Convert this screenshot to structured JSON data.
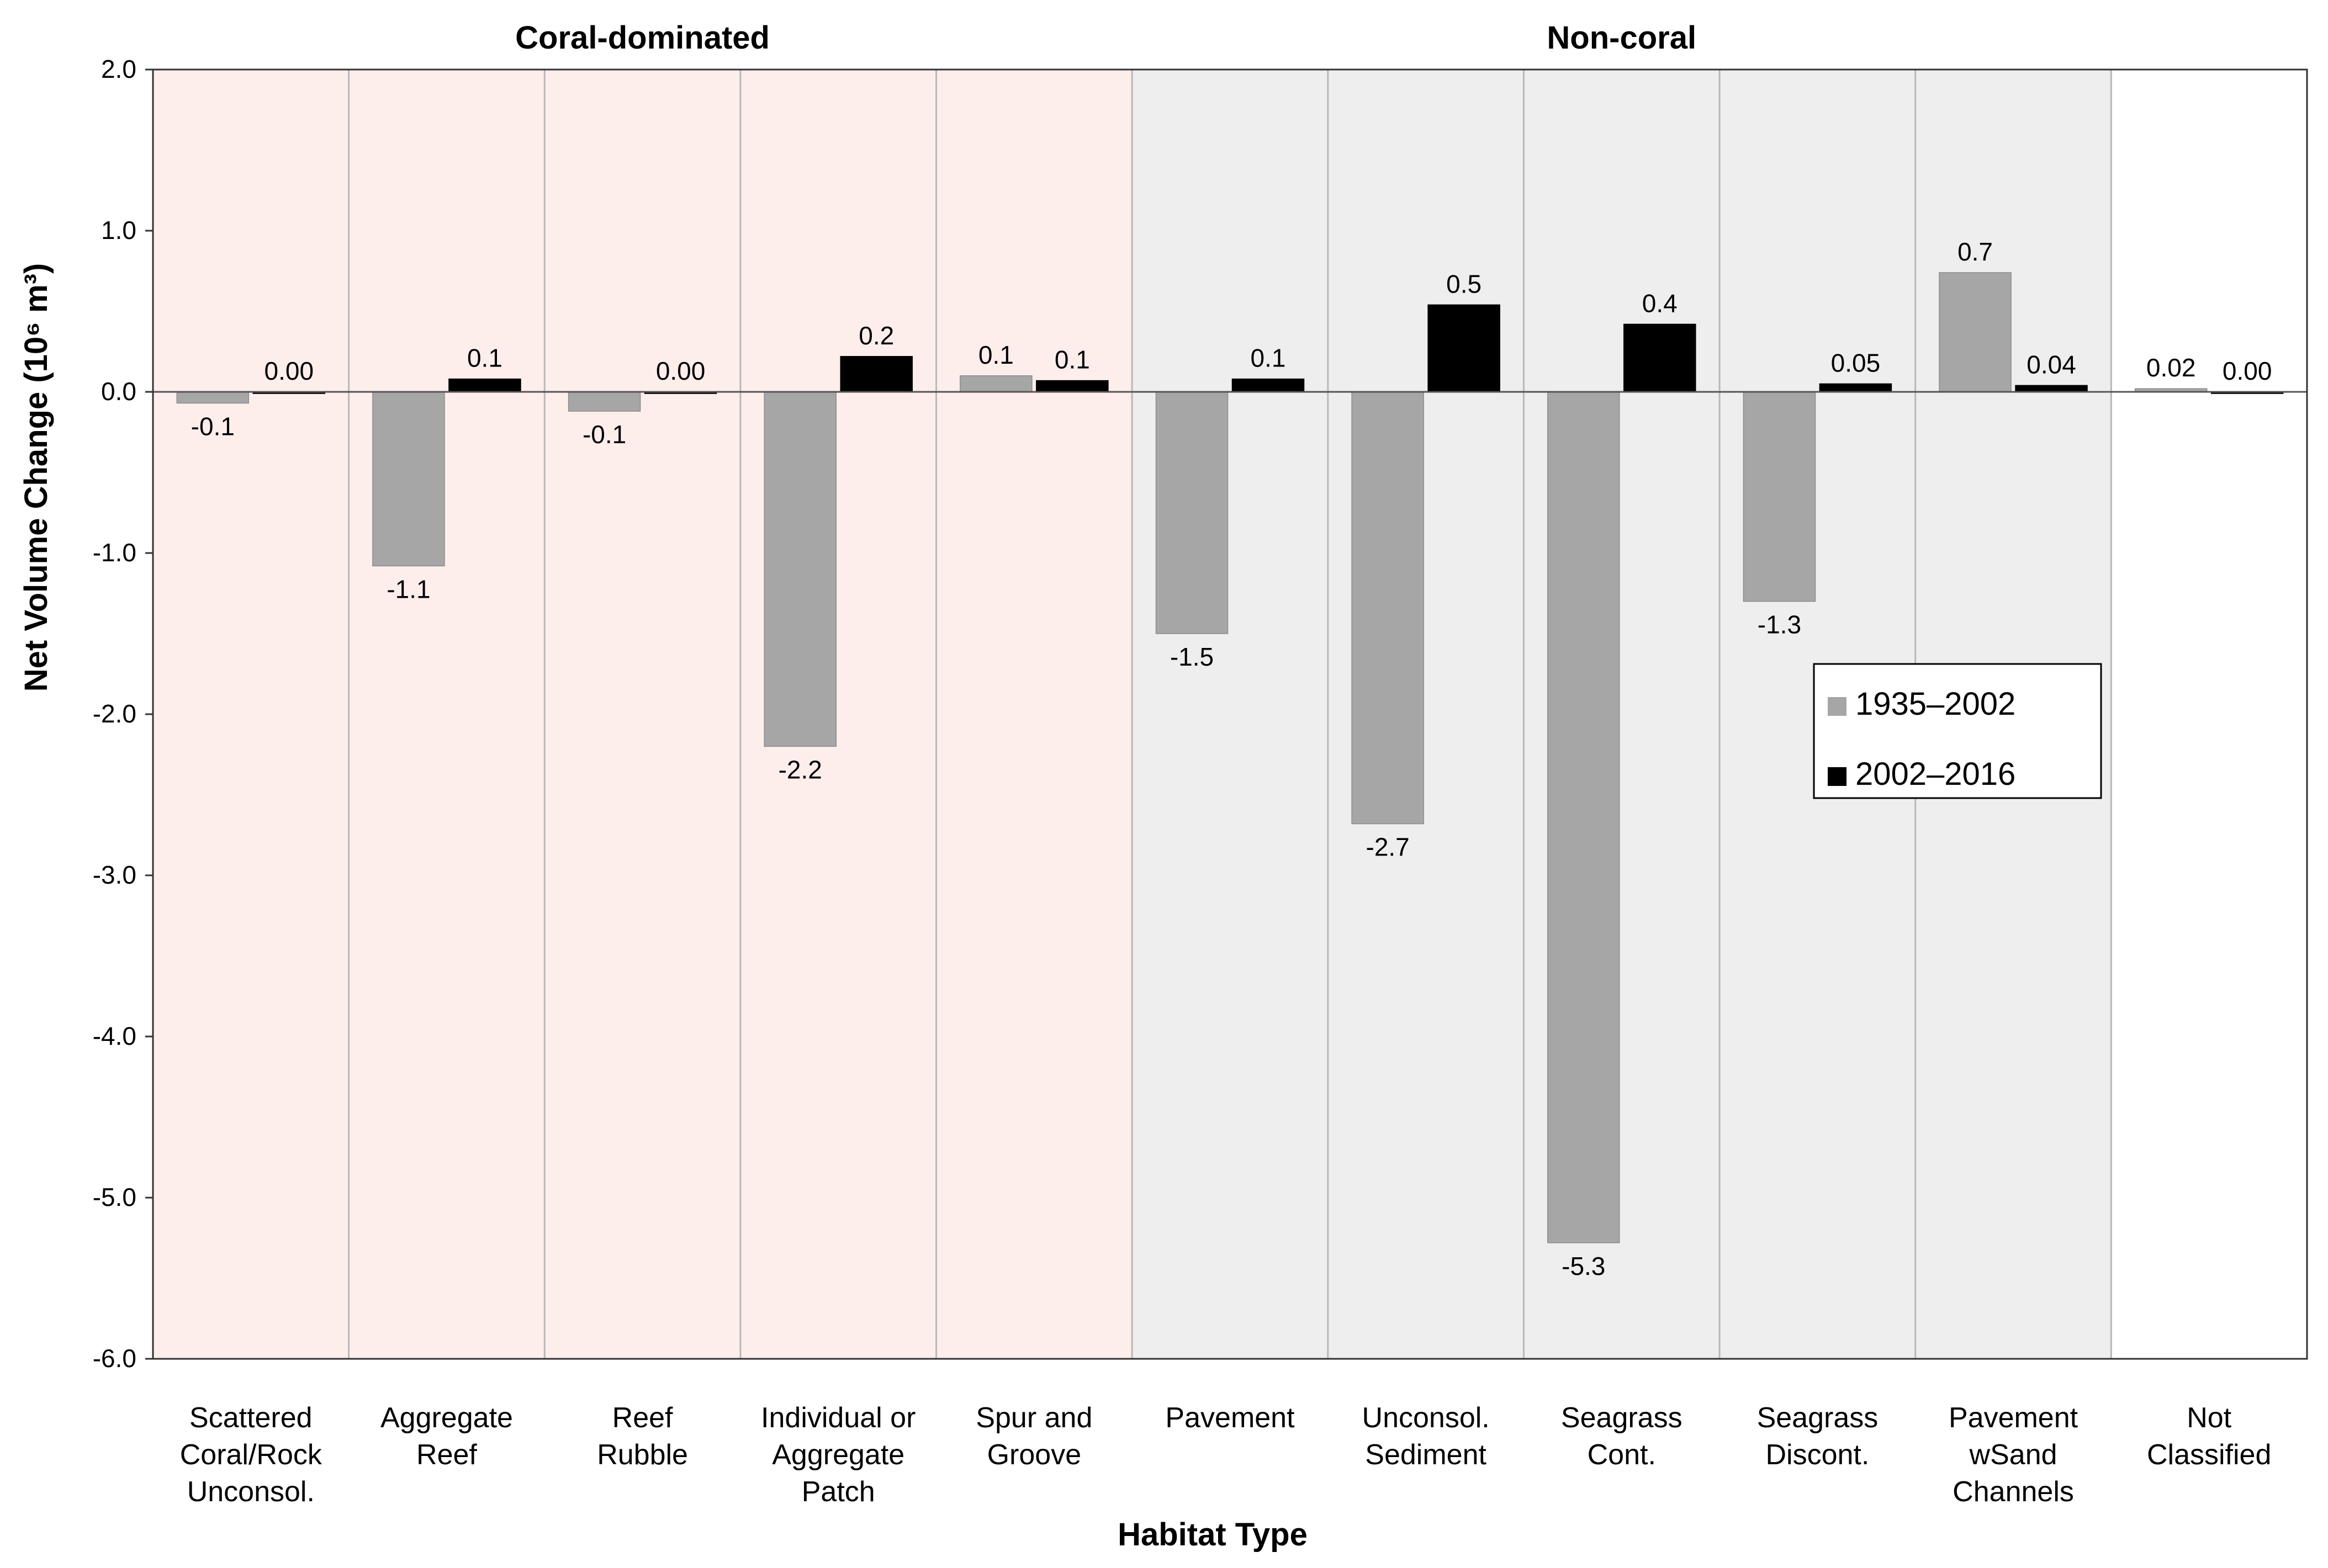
{
  "chart_data": {
    "type": "bar",
    "ylabel": "Net Volume Change (10⁶ m³)",
    "xlabel": "Habitat Type",
    "ylim": [
      -6.0,
      2.0
    ],
    "yticks": [
      "2.0",
      "1.0",
      "0.0",
      "-1.0",
      "-2.0",
      "-3.0",
      "-4.0",
      "-5.0",
      "-6.0"
    ],
    "ytick_values": [
      2,
      1,
      0,
      -1,
      -2,
      -3,
      -4,
      -5,
      -6
    ],
    "grid": "vertical category separators",
    "legend_position": "right, middle",
    "groups": [
      {
        "label": "Coral-dominated",
        "first": 0,
        "last": 4,
        "color": "#fdeeec"
      },
      {
        "label": "Non-coral",
        "first": 5,
        "last": 9,
        "color": "#eeeeee"
      }
    ],
    "categories": [
      [
        "Scattered",
        "Coral/Rock",
        "Unconsol."
      ],
      [
        "Aggregate",
        "Reef"
      ],
      [
        "Reef",
        "Rubble"
      ],
      [
        "Individual or",
        "Aggregate",
        "Patch"
      ],
      [
        "Spur and",
        "Groove"
      ],
      [
        "Pavement"
      ],
      [
        "Unconsol.",
        "Sediment"
      ],
      [
        "Seagrass",
        "Cont."
      ],
      [
        "Seagrass",
        "Discont."
      ],
      [
        "Pavement",
        "wSand",
        "Channels"
      ],
      [
        "Not",
        "Classified"
      ]
    ],
    "series": [
      {
        "name": "1935–2002",
        "color": "#a6a6a6",
        "values": [
          -0.07,
          -1.08,
          -0.12,
          -2.2,
          0.1,
          -1.5,
          -2.68,
          -5.28,
          -1.3,
          0.74,
          0.02
        ],
        "labels": [
          "-0.1",
          "-1.1",
          "-0.1",
          "-2.2",
          "0.1",
          "-1.5",
          "-2.7",
          "-5.3",
          "-1.3",
          "0.7",
          "0.02"
        ]
      },
      {
        "name": "2002–2016",
        "color": "#000000",
        "values": [
          0.0,
          0.08,
          0.0,
          0.22,
          0.07,
          0.08,
          0.54,
          0.42,
          0.05,
          0.04,
          0.0
        ],
        "labels": [
          "0.00",
          "0.1",
          "0.00",
          "0.2",
          "0.1",
          "0.1",
          "0.5",
          "0.4",
          "0.05",
          "0.04",
          "0.00"
        ]
      }
    ]
  }
}
